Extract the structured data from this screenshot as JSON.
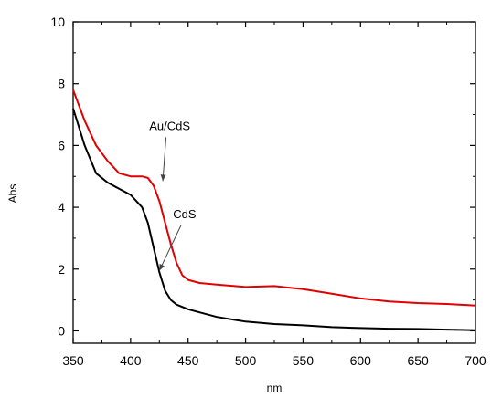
{
  "chart_data": {
    "type": "line",
    "title": "",
    "xlabel": "nm",
    "ylabel": "Abs",
    "xlim": [
      350,
      700
    ],
    "ylim": [
      -0.4,
      10
    ],
    "xticks": [
      350,
      400,
      450,
      500,
      550,
      600,
      650,
      700
    ],
    "yticks": [
      0,
      2,
      4,
      6,
      8,
      10
    ],
    "grid": false,
    "legend": "none",
    "series": [
      {
        "color": "#e00000",
        "points": [
          [
            350,
            7.8
          ],
          [
            360,
            6.8
          ],
          [
            370,
            6.0
          ],
          [
            380,
            5.5
          ],
          [
            390,
            5.1
          ],
          [
            400,
            5.0
          ],
          [
            410,
            5.0
          ],
          [
            415,
            4.95
          ],
          [
            420,
            4.7
          ],
          [
            425,
            4.2
          ],
          [
            430,
            3.5
          ],
          [
            435,
            2.8
          ],
          [
            440,
            2.2
          ],
          [
            445,
            1.8
          ],
          [
            450,
            1.65
          ],
          [
            460,
            1.55
          ],
          [
            475,
            1.5
          ],
          [
            500,
            1.42
          ],
          [
            525,
            1.45
          ],
          [
            550,
            1.35
          ],
          [
            575,
            1.2
          ],
          [
            600,
            1.05
          ],
          [
            625,
            0.95
          ],
          [
            650,
            0.9
          ],
          [
            675,
            0.87
          ],
          [
            700,
            0.82
          ]
        ]
      },
      {
        "color": "#000000",
        "points": [
          [
            350,
            7.2
          ],
          [
            360,
            6.0
          ],
          [
            370,
            5.1
          ],
          [
            380,
            4.8
          ],
          [
            390,
            4.6
          ],
          [
            400,
            4.4
          ],
          [
            410,
            4.0
          ],
          [
            415,
            3.5
          ],
          [
            420,
            2.7
          ],
          [
            425,
            1.9
          ],
          [
            430,
            1.3
          ],
          [
            435,
            1.0
          ],
          [
            440,
            0.85
          ],
          [
            450,
            0.7
          ],
          [
            460,
            0.6
          ],
          [
            475,
            0.45
          ],
          [
            500,
            0.3
          ],
          [
            525,
            0.22
          ],
          [
            550,
            0.18
          ],
          [
            575,
            0.12
          ],
          [
            600,
            0.09
          ],
          [
            625,
            0.07
          ],
          [
            650,
            0.06
          ],
          [
            675,
            0.04
          ],
          [
            700,
            0.02
          ]
        ]
      }
    ],
    "annotations": [
      {
        "text": "Au/CdS",
        "x": 434,
        "y": 6.5,
        "arrow_to": [
          428,
          4.85
        ]
      },
      {
        "text": "CdS",
        "x": 447,
        "y": 3.65,
        "arrow_to": [
          425,
          1.95
        ]
      }
    ]
  }
}
